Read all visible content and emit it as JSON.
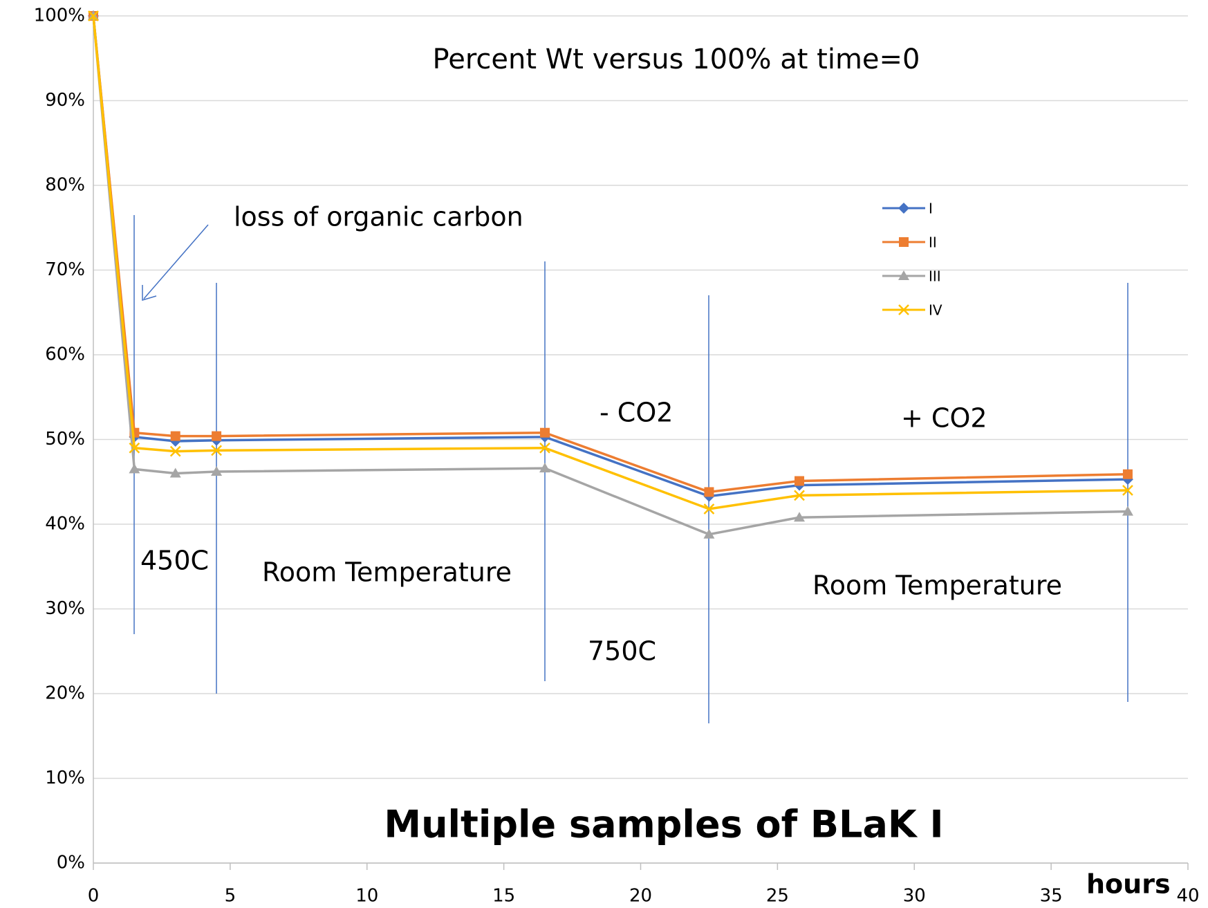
{
  "chart_data": {
    "type": "line",
    "title": "Percent Wt versus 100% at time=0",
    "subtitle": "Multiple samples  of BLaK I",
    "x_label": "hours",
    "x": [
      0,
      1.5,
      3,
      4.5,
      16.5,
      22.5,
      25.8,
      37.8
    ],
    "series": [
      {
        "name": "I",
        "color": "#4472c4",
        "marker": "diamond",
        "values": [
          100,
          50.3,
          49.8,
          49.9,
          50.3,
          43.3,
          44.6,
          45.3
        ]
      },
      {
        "name": "II",
        "color": "#ed7d31",
        "marker": "square",
        "values": [
          100,
          50.8,
          50.4,
          50.4,
          50.8,
          43.8,
          45.1,
          45.9
        ]
      },
      {
        "name": "III",
        "color": "#a5a5a5",
        "marker": "triangle",
        "values": [
          100,
          46.5,
          46.0,
          46.2,
          46.6,
          38.8,
          40.8,
          41.5
        ]
      },
      {
        "name": "IV",
        "color": "#ffc000",
        "marker": "x",
        "values": [
          100,
          49.0,
          48.6,
          48.7,
          49.0,
          41.8,
          43.4,
          44.0
        ]
      }
    ],
    "xlim": [
      0,
      40
    ],
    "xticks": [
      0,
      5,
      10,
      15,
      20,
      25,
      30,
      35,
      40
    ],
    "ylim": [
      0,
      100
    ],
    "yticks": [
      {
        "value": 0,
        "label": "0%"
      },
      {
        "value": 10,
        "label": "10%"
      },
      {
        "value": 20,
        "label": "20%"
      },
      {
        "value": 30,
        "label": "30%"
      },
      {
        "value": 40,
        "label": "40%"
      },
      {
        "value": 50,
        "label": "50%"
      },
      {
        "value": 60,
        "label": "60%"
      },
      {
        "value": 70,
        "label": "70%"
      },
      {
        "value": 80,
        "label": "80%"
      },
      {
        "value": 90,
        "label": "90%"
      },
      {
        "value": 100,
        "label": "100%"
      }
    ],
    "grid": true,
    "legend": "upper right",
    "annotations": [
      {
        "text": "loss of organic carbon"
      },
      {
        "text": "450C"
      },
      {
        "text": "Room Temperature"
      },
      {
        "text": "750C"
      },
      {
        "text": "- CO2"
      },
      {
        "text": "+ CO2"
      },
      {
        "text": "Room Temperature"
      }
    ]
  }
}
